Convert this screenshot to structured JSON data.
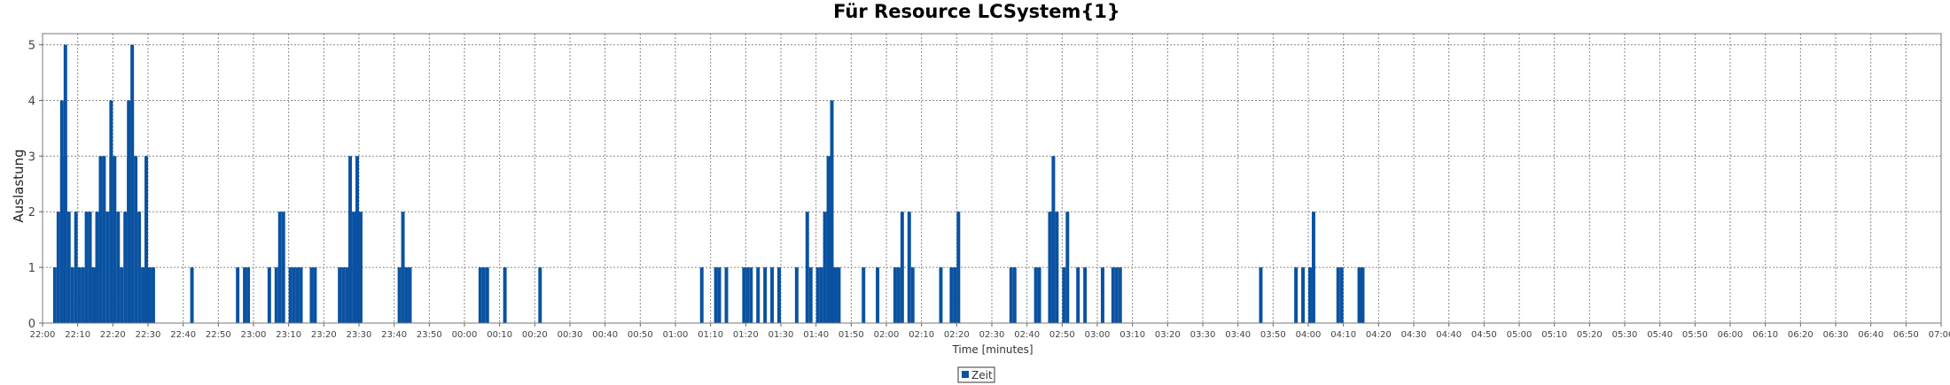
{
  "chart_data": {
    "type": "bar",
    "title": "Für Resource LCSystem{1}",
    "xlabel": "Time [minutes]",
    "ylabel": "Auslastung",
    "x_unit": "time of day (HH:MM)",
    "xlim": [
      "22:00",
      "07:00"
    ],
    "ylim": [
      0,
      5.2
    ],
    "y_ticks": [
      0,
      1,
      2,
      3,
      4,
      5
    ],
    "x_ticks": [
      "22:00",
      "22:10",
      "22:20",
      "22:30",
      "22:40",
      "22:50",
      "23:00",
      "23:10",
      "23:20",
      "23:30",
      "23:40",
      "23:50",
      "00:00",
      "00:10",
      "00:20",
      "00:30",
      "00:40",
      "00:50",
      "01:00",
      "01:10",
      "01:20",
      "01:30",
      "01:40",
      "01:50",
      "02:00",
      "02:10",
      "02:20",
      "02:30",
      "02:40",
      "02:50",
      "03:00",
      "03:10",
      "03:20",
      "03:30",
      "03:40",
      "03:50",
      "04:00",
      "04:10",
      "04:20",
      "04:30",
      "04:40",
      "04:50",
      "05:00",
      "05:10",
      "05:20",
      "05:30",
      "05:40",
      "05:50",
      "06:00",
      "06:10",
      "06:20",
      "06:30",
      "06:40",
      "06:50",
      "07:00"
    ],
    "grid": true,
    "legend_position": "bottom-center",
    "series": [
      {
        "name": "Zeit",
        "color": "#0a52a1",
        "points": [
          [
            "22:03",
            1
          ],
          [
            "22:04",
            2
          ],
          [
            "22:05",
            3
          ],
          [
            "22:05",
            4
          ],
          [
            "22:06",
            5
          ],
          [
            "22:06",
            3
          ],
          [
            "22:07",
            2
          ],
          [
            "22:08",
            1
          ],
          [
            "22:09",
            2
          ],
          [
            "22:10",
            1
          ],
          [
            "22:11",
            1
          ],
          [
            "22:12",
            2
          ],
          [
            "22:13",
            2
          ],
          [
            "22:14",
            1
          ],
          [
            "22:15",
            2
          ],
          [
            "22:16",
            3
          ],
          [
            "22:17",
            3
          ],
          [
            "22:18",
            2
          ],
          [
            "22:19",
            3
          ],
          [
            "22:19",
            4
          ],
          [
            "22:20",
            3
          ],
          [
            "22:21",
            2
          ],
          [
            "22:21",
            1
          ],
          [
            "22:22",
            1
          ],
          [
            "22:23",
            2
          ],
          [
            "22:24",
            3
          ],
          [
            "22:24",
            4
          ],
          [
            "22:25",
            5
          ],
          [
            "22:25",
            4
          ],
          [
            "22:26",
            3
          ],
          [
            "22:27",
            2
          ],
          [
            "22:28",
            1
          ],
          [
            "22:29",
            3
          ],
          [
            "22:29",
            2
          ],
          [
            "22:30",
            1
          ],
          [
            "22:31",
            1
          ],
          [
            "22:42",
            1
          ],
          [
            "22:55",
            1
          ],
          [
            "22:57",
            1
          ],
          [
            "22:58",
            1
          ],
          [
            "23:04",
            1
          ],
          [
            "23:06",
            1
          ],
          [
            "23:07",
            2
          ],
          [
            "23:08",
            2
          ],
          [
            "23:10",
            1
          ],
          [
            "23:11",
            1
          ],
          [
            "23:12",
            1
          ],
          [
            "23:13",
            1
          ],
          [
            "23:16",
            1
          ],
          [
            "23:17",
            1
          ],
          [
            "23:24",
            1
          ],
          [
            "23:25",
            1
          ],
          [
            "23:26",
            1
          ],
          [
            "23:27",
            3
          ],
          [
            "23:27",
            2
          ],
          [
            "23:28",
            2
          ],
          [
            "23:29",
            3
          ],
          [
            "23:29",
            2
          ],
          [
            "23:30",
            2
          ],
          [
            "23:41",
            1
          ],
          [
            "23:42",
            2
          ],
          [
            "23:43",
            1
          ],
          [
            "23:44",
            1
          ],
          [
            "00:04",
            1
          ],
          [
            "00:05",
            1
          ],
          [
            "00:06",
            1
          ],
          [
            "00:11",
            1
          ],
          [
            "00:21",
            1
          ],
          [
            "01:07",
            1
          ],
          [
            "01:11",
            1
          ],
          [
            "01:12",
            1
          ],
          [
            "01:14",
            1
          ],
          [
            "01:19",
            1
          ],
          [
            "01:20",
            1
          ],
          [
            "01:21",
            1
          ],
          [
            "01:23",
            1
          ],
          [
            "01:25",
            1
          ],
          [
            "01:27",
            1
          ],
          [
            "01:29",
            1
          ],
          [
            "01:34",
            1
          ],
          [
            "01:37",
            2
          ],
          [
            "01:38",
            1
          ],
          [
            "01:40",
            1
          ],
          [
            "01:41",
            1
          ],
          [
            "01:42",
            2
          ],
          [
            "01:43",
            3
          ],
          [
            "01:44",
            3
          ],
          [
            "01:44",
            4
          ],
          [
            "01:45",
            1
          ],
          [
            "01:46",
            1
          ],
          [
            "01:53",
            1
          ],
          [
            "01:57",
            1
          ],
          [
            "02:02",
            1
          ],
          [
            "02:03",
            1
          ],
          [
            "02:04",
            2
          ],
          [
            "02:06",
            2
          ],
          [
            "02:07",
            1
          ],
          [
            "02:15",
            1
          ],
          [
            "02:18",
            1
          ],
          [
            "02:19",
            1
          ],
          [
            "02:20",
            2
          ],
          [
            "02:35",
            1
          ],
          [
            "02:36",
            1
          ],
          [
            "02:42",
            1
          ],
          [
            "02:43",
            1
          ],
          [
            "02:46",
            2
          ],
          [
            "02:47",
            3
          ],
          [
            "02:48",
            2
          ],
          [
            "02:50",
            1
          ],
          [
            "02:51",
            2
          ],
          [
            "02:54",
            1
          ],
          [
            "02:56",
            1
          ],
          [
            "03:01",
            1
          ],
          [
            "03:04",
            1
          ],
          [
            "03:05",
            1
          ],
          [
            "03:06",
            1
          ],
          [
            "03:46",
            1
          ],
          [
            "03:56",
            1
          ],
          [
            "03:58",
            1
          ],
          [
            "04:00",
            1
          ],
          [
            "04:01",
            2
          ],
          [
            "04:08",
            1
          ],
          [
            "04:09",
            1
          ],
          [
            "04:14",
            1
          ],
          [
            "04:15",
            1
          ]
        ]
      }
    ]
  }
}
